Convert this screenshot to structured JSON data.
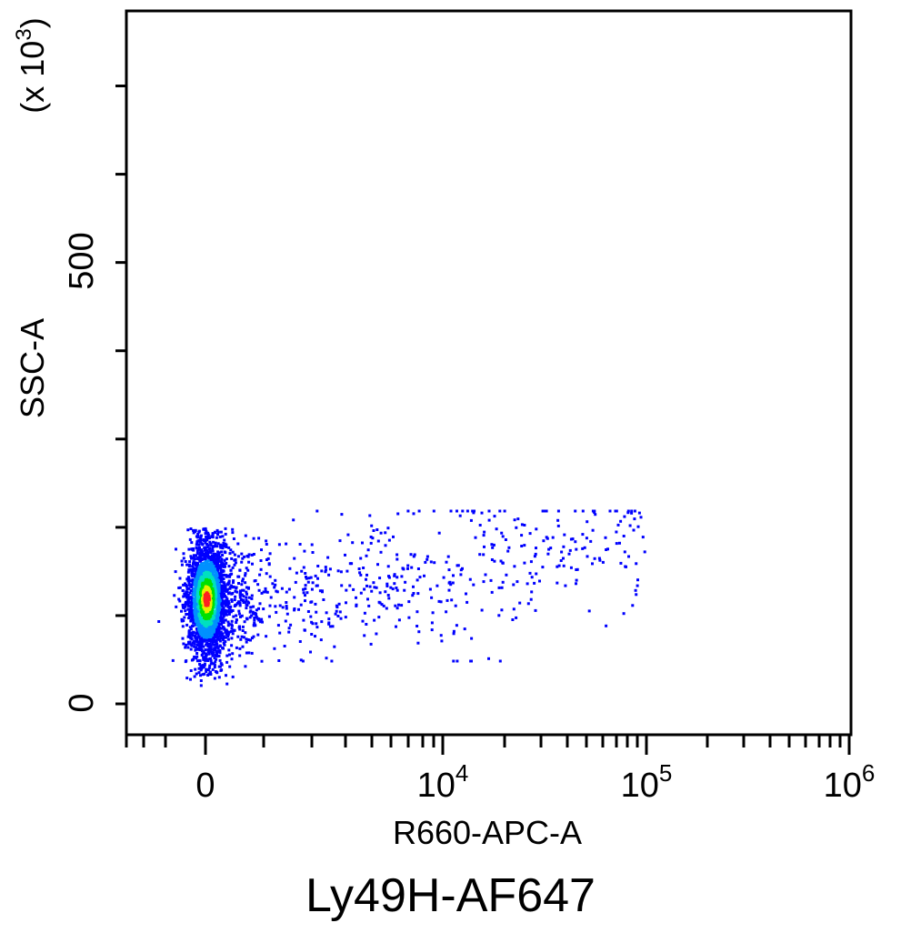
{
  "chart_data": {
    "type": "scatter",
    "title": "",
    "xlabel": "R660-APC-A",
    "ylabel": "SSC-A",
    "y_multiplier_label": "(x 10",
    "y_multiplier_exponent": "3",
    "x_scale": "biexponential",
    "y_scale": "linear",
    "x_tick_labels": [
      {
        "base": "0",
        "exp": ""
      },
      {
        "base": "10",
        "exp": "4"
      },
      {
        "base": "10",
        "exp": "5"
      },
      {
        "base": "10",
        "exp": "6"
      }
    ],
    "y_tick_labels": [
      "0",
      "500"
    ],
    "ylim": [
      -35,
      785
    ],
    "density_colors": [
      "#0000ff",
      "#0090ff",
      "#00e0c0",
      "#00e000",
      "#e8f000",
      "#ff2020"
    ],
    "populations": [
      {
        "name": "",
        "x_center": 0,
        "y_center": 120,
        "cell_fraction": 0.82
      },
      {
        "name": "",
        "x_range": [
          1000,
          100000
        ],
        "y_range": [
          50,
          220
        ],
        "cell_fraction": 0.18
      }
    ],
    "grid": false,
    "legend": "none"
  },
  "caption": "Ly49H-AF647"
}
